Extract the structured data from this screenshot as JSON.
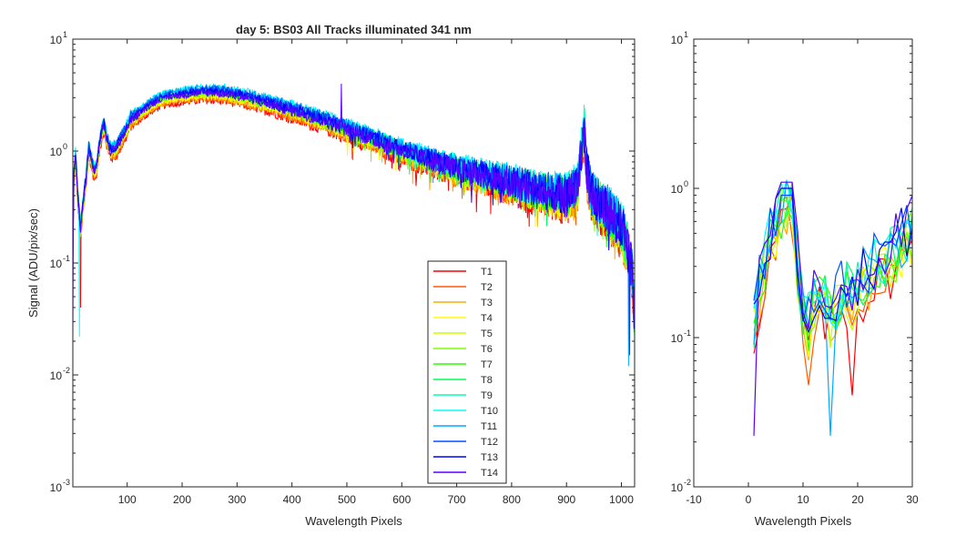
{
  "chart_data": [
    {
      "type": "line",
      "title": "day 5: BS03   All Tracks illuminated   341 nm",
      "xlabel": "Wavelength Pixels",
      "ylabel": "Signal (ADU/pix/sec)",
      "xlim": [
        1,
        1024
      ],
      "ylim": [
        0.001,
        10
      ],
      "yscale": "log",
      "xticks": [
        "100",
        "200",
        "300",
        "400",
        "500",
        "600",
        "700",
        "800",
        "900",
        "1000"
      ],
      "yticks": [
        {
          "base": "10",
          "exp": "1"
        },
        {
          "base": "10",
          "exp": "0"
        },
        {
          "base": "10",
          "exp": "-1"
        },
        {
          "base": "10",
          "exp": "-2"
        },
        {
          "base": "10",
          "exp": "-3"
        }
      ],
      "grid": false,
      "legend_position": "bottom-center",
      "base_profile": {
        "x": [
          1,
          3,
          6,
          10,
          15,
          20,
          25,
          30,
          35,
          40,
          45,
          50,
          55,
          58,
          62,
          70,
          80,
          90,
          100,
          105,
          110,
          120,
          140,
          160,
          180,
          200,
          220,
          240,
          260,
          280,
          300,
          350,
          400,
          450,
          500,
          550,
          600,
          650,
          700,
          750,
          800,
          850,
          900,
          920,
          930,
          933,
          936,
          945,
          960,
          980,
          1000,
          1010,
          1020,
          1024
        ],
        "y": [
          0.12,
          0.6,
          0.9,
          0.4,
          0.2,
          0.35,
          0.55,
          1.05,
          0.8,
          0.65,
          0.75,
          1.2,
          1.55,
          1.7,
          1.3,
          1.0,
          1.05,
          1.3,
          1.6,
          1.9,
          2.0,
          2.1,
          2.5,
          2.9,
          3.05,
          3.15,
          3.25,
          3.3,
          3.3,
          3.25,
          3.1,
          2.7,
          2.3,
          1.9,
          1.55,
          1.25,
          1.0,
          0.82,
          0.68,
          0.58,
          0.5,
          0.43,
          0.38,
          0.5,
          1.3,
          1.6,
          0.7,
          0.4,
          0.33,
          0.27,
          0.2,
          0.14,
          0.08,
          0.03
        ]
      },
      "series": [
        {
          "name": "T1",
          "color": "#ff0000",
          "scale": 0.86
        },
        {
          "name": "T2",
          "color": "#ff5a00",
          "scale": 0.89
        },
        {
          "name": "T3",
          "color": "#ffaa00",
          "scale": 0.91
        },
        {
          "name": "T4",
          "color": "#ffff00",
          "scale": 0.94
        },
        {
          "name": "T5",
          "color": "#c8ff00",
          "scale": 0.97
        },
        {
          "name": "T6",
          "color": "#7dff00",
          "scale": 1.0
        },
        {
          "name": "T7",
          "color": "#28ff00",
          "scale": 1.02
        },
        {
          "name": "T8",
          "color": "#00ff5a",
          "scale": 1.05
        },
        {
          "name": "T9",
          "color": "#00ffb4",
          "scale": 1.08
        },
        {
          "name": "T10",
          "color": "#00ffff",
          "scale": 1.12
        },
        {
          "name": "T11",
          "color": "#00aaff",
          "scale": 1.1
        },
        {
          "name": "T12",
          "color": "#0050ff",
          "scale": 1.07
        },
        {
          "name": "T13",
          "color": "#0000ff",
          "scale": 1.04
        },
        {
          "name": "T14",
          "color": "#5a00ff",
          "scale": 1.0
        }
      ],
      "annotations": [
        {
          "text": "spike near pixel 490",
          "x": 490,
          "y": 4.0
        }
      ]
    },
    {
      "type": "line",
      "title": "",
      "xlabel": "Wavelength Pixels",
      "ylabel": "",
      "xlim": [
        -10,
        30
      ],
      "ylim": [
        0.01,
        10
      ],
      "yscale": "log",
      "xticks": [
        "-10",
        "0",
        "10",
        "20",
        "30"
      ],
      "yticks": [
        {
          "base": "10",
          "exp": "1"
        },
        {
          "base": "10",
          "exp": "0"
        },
        {
          "base": "10",
          "exp": "-1"
        },
        {
          "base": "10",
          "exp": "-2"
        }
      ],
      "grid": false,
      "x": [
        1,
        2,
        3,
        4,
        5,
        6,
        7,
        8,
        9,
        10,
        11,
        12,
        13,
        14,
        15,
        16,
        17,
        18,
        19,
        20,
        21,
        22,
        23,
        24,
        25,
        26,
        27,
        28,
        29,
        30
      ],
      "base_profile": [
        0.12,
        0.2,
        0.32,
        0.42,
        0.55,
        0.7,
        0.85,
        0.8,
        0.3,
        0.14,
        0.12,
        0.15,
        0.18,
        0.16,
        0.14,
        0.16,
        0.19,
        0.2,
        0.17,
        0.21,
        0.23,
        0.26,
        0.27,
        0.3,
        0.32,
        0.35,
        0.37,
        0.4,
        0.42,
        0.47
      ]
    }
  ]
}
